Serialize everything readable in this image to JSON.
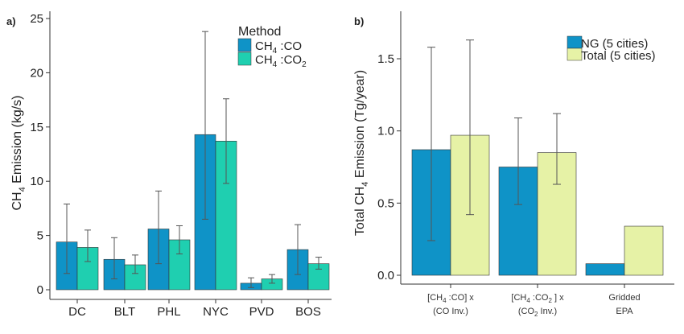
{
  "chart_data": [
    {
      "panel": "a)",
      "type": "bar",
      "ylabel_main": "CH",
      "ylabel_sub": "4",
      "ylabel_rest": " Emission (kg/s)",
      "ylim": [
        0,
        25
      ],
      "yticks": [
        "0",
        "5",
        "10",
        "15",
        "20",
        "25"
      ],
      "categories": [
        "DC",
        "BLT",
        "PHL",
        "NYC",
        "PVD",
        "BOS"
      ],
      "legend": {
        "title": "Method",
        "placement": "top-right",
        "entries": [
          {
            "main": "CH",
            "sub": "4",
            "rest": " :CO"
          },
          {
            "main": "CH",
            "sub": "4",
            "rest": " :CO",
            "sub2": "2"
          }
        ]
      },
      "series": [
        {
          "color": "#0f93c7",
          "values": [
            4.4,
            2.8,
            5.6,
            14.3,
            0.6,
            3.7
          ],
          "err_low": [
            1.5,
            1.0,
            2.4,
            6.5,
            0.2,
            1.4
          ],
          "err_high": [
            7.9,
            4.8,
            9.1,
            23.8,
            1.1,
            6.0
          ]
        },
        {
          "color": "#1fcfb0",
          "values": [
            3.9,
            2.3,
            4.6,
            13.7,
            1.0,
            2.4
          ],
          "err_low": [
            2.6,
            1.5,
            3.3,
            9.8,
            0.6,
            1.9
          ],
          "err_high": [
            5.5,
            3.2,
            5.9,
            17.6,
            1.4,
            3.0
          ]
        }
      ],
      "grid": false
    },
    {
      "panel": "b)",
      "type": "bar",
      "ylabel_main": "Total CH",
      "ylabel_sub": "4",
      "ylabel_rest": " Emission (Tg/year)",
      "ylim": [
        -0.05,
        1.75
      ],
      "yticks": [
        "0.0",
        "0.5",
        "1.0",
        "1.5"
      ],
      "categories": [
        {
          "line1_a": "[CH",
          "line1_sub": "4",
          "line1_b": " :CO]  x",
          "line2_a": "(CO Inv.)",
          "line2_sub": "",
          "line2_b": ""
        },
        {
          "line1_a": "[CH",
          "line1_sub": "4",
          "line1_b": " :CO",
          "line1_sub2": "2",
          "line1_c": " ]  x",
          "line2_a": "(CO",
          "line2_sub": "2",
          "line2_b": "  Inv.)"
        },
        {
          "line1_a": "Gridded",
          "line1_sub": "",
          "line1_b": "",
          "line2_a": "EPA",
          "line2_sub": "",
          "line2_b": ""
        }
      ],
      "legend": {
        "placement": "top-right",
        "entries": [
          "NG (5 cities)",
          "Total (5 cities)"
        ]
      },
      "series": [
        {
          "name": "NG (5 cities)",
          "color": "#0f93c7",
          "values": [
            0.87,
            0.75,
            0.08
          ],
          "err_low": [
            0.24,
            0.49,
            null
          ],
          "err_high": [
            1.58,
            1.09,
            null
          ]
        },
        {
          "name": "Total (5 cities)",
          "color": "#e6f2a6",
          "values": [
            0.97,
            0.85,
            0.34
          ],
          "err_low": [
            0.42,
            0.63,
            null
          ],
          "err_high": [
            1.63,
            1.12,
            null
          ]
        }
      ],
      "grid": false
    }
  ]
}
